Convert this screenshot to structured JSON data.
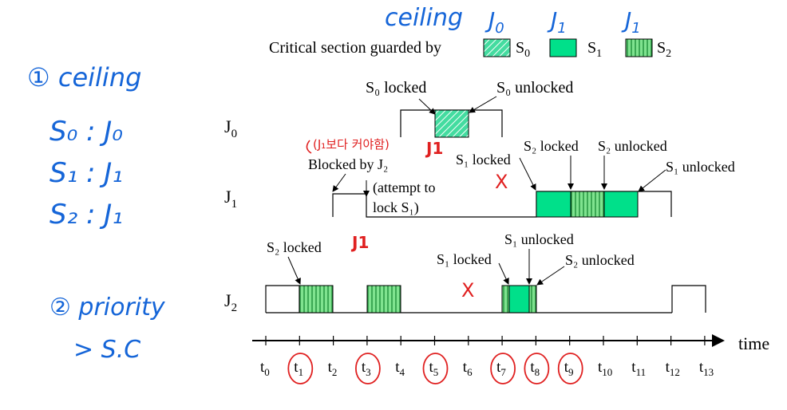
{
  "legend": {
    "caption": "Critical section guarded by",
    "entries": [
      {
        "sym": "S",
        "sub": "0",
        "pattern": "hatch",
        "note": "J",
        "note_sub": "0"
      },
      {
        "sym": "S",
        "sub": "1",
        "pattern": "solid",
        "note": "J",
        "note_sub": "1"
      },
      {
        "sym": "S",
        "sub": "2",
        "pattern": "vstripe",
        "note": "J",
        "note_sub": "1"
      }
    ],
    "ceiling_note": "ceiling"
  },
  "jobs": [
    {
      "name": "J",
      "sub": "0"
    },
    {
      "name": "J",
      "sub": "1"
    },
    {
      "name": "J",
      "sub": "2"
    }
  ],
  "labels": {
    "s0_locked": "S₀  locked",
    "s0_unlocked": "S₀  unlocked",
    "blocked_by": "Blocked by J₂",
    "attempt": "(attempt to",
    "lock_s1": "lock S₁)",
    "s1_locked_j1": "S₁  locked",
    "s2_locked_j1": "S₂  locked",
    "s2_unlocked_j1": "S₂ unlocked",
    "s1_unlocked_j1": "S₁ unlocked",
    "s2_locked_j2": "S₂  locked",
    "s1_unlocked_j2": "S₁ unlocked",
    "s1_locked_j2": "S₁  locked",
    "s2_unlocked_j2": "S₂ unlocked"
  },
  "axis": {
    "label": "time",
    "ticks": [
      "0",
      "1",
      "2",
      "3",
      "4",
      "5",
      "6",
      "7",
      "8",
      "9",
      "10",
      "11",
      "12",
      "13"
    ],
    "circled": [
      "1",
      "3",
      "5",
      "7",
      "8",
      "9"
    ]
  },
  "annotations": {
    "left_title": "① ceiling",
    "left_lines": [
      "S₀ : J₀",
      "S₁ : J₁",
      "S₂ : J₁"
    ],
    "priority": "② priority",
    "priority_2": "> S.C",
    "korean_note": "(J₁보다 커야함)",
    "j1_mark_top": "J1",
    "j1_mark_mid": "J1",
    "x_mark": "X"
  },
  "colors": {
    "section_fill": "#00e08a",
    "hatch_fill": "#44dca0",
    "stripe_dark": "#1f8f3a",
    "annotation_blue": "#1565d8",
    "annotation_red": "#e02020"
  }
}
